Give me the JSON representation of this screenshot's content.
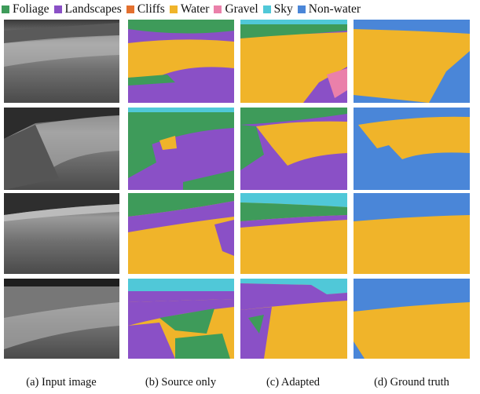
{
  "legend": [
    {
      "label": "Foliage",
      "color": "#3e9b5a"
    },
    {
      "label": "Landscapes",
      "color": "#8a50c6"
    },
    {
      "label": "Cliffs",
      "color": "#e3702f"
    },
    {
      "label": "Water",
      "color": "#f0b42a"
    },
    {
      "label": "Gravel",
      "color": "#ea80aa"
    },
    {
      "label": "Sky",
      "color": "#50c8d8"
    },
    {
      "label": "Non-water",
      "color": "#4a86d8"
    }
  ],
  "captions": [
    "(a) Input image",
    "(b) Source only",
    "(c) Adapted",
    "(d) Ground truth"
  ]
}
